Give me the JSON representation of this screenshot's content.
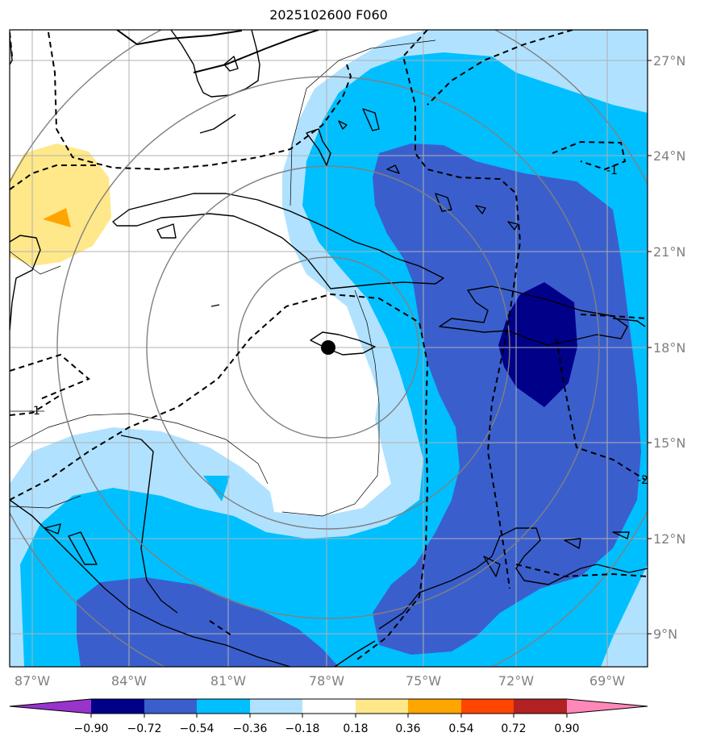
{
  "title": "2025102600 F060",
  "map": {
    "lon_ticks": [
      "87°W",
      "84°W",
      "81°W",
      "78°W",
      "75°W",
      "72°W",
      "69°W"
    ],
    "lat_ticks": [
      "27°N",
      "24°N",
      "21°N",
      "18°N",
      "15°N",
      "12°N",
      "9°N"
    ],
    "lon_extent": [
      -87.7,
      -67.6
    ],
    "lat_extent": [
      7.9,
      27.9
    ],
    "contour_labels": [
      "-1",
      "-1",
      "-2"
    ],
    "storm_center": {
      "lon": -77.9,
      "lat": 17.9
    }
  },
  "colorbar": {
    "ticks": [
      "−0.90",
      "−0.72",
      "−0.54",
      "−0.36",
      "−0.18",
      "0.18",
      "0.36",
      "0.54",
      "0.72",
      "0.90"
    ],
    "colors": [
      "#9933cc",
      "#000088",
      "#3a5fcd",
      "#00bfff",
      "#b0e2ff",
      "#ffffff",
      "#ffe88a",
      "#ffa500",
      "#ff4500",
      "#b22222",
      "#ff88b8"
    ]
  },
  "colors": {
    "light_blue": "#b0e2ff",
    "sky_blue": "#00bfff",
    "royal_blue": "#3a5fcd",
    "navy": "#000088",
    "light_yellow": "#ffe88a",
    "orange": "#ffa500"
  }
}
